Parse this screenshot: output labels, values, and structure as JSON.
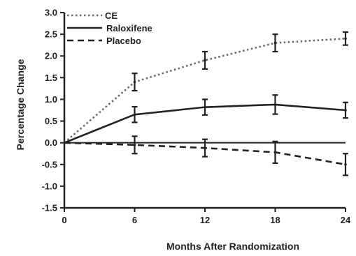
{
  "chart_data": {
    "type": "line",
    "title": "",
    "xlabel": "Months After Randomization",
    "ylabel": "Percentage Change",
    "x": [
      0,
      6,
      12,
      18,
      24
    ],
    "xlim": [
      0,
      24
    ],
    "ylim": [
      -1.5,
      3.0
    ],
    "x_ticks": [
      "0",
      "6",
      "12",
      "18",
      "24"
    ],
    "y_ticks": [
      "3.0",
      "2.5",
      "2.0",
      "1.5",
      "1.0",
      "0.5",
      "0.0",
      "-0.5",
      "-1.0",
      "-1.5"
    ],
    "grid": false,
    "legend_position": "top-left",
    "series": [
      {
        "name": "CE",
        "style": "dotted",
        "color": "#222222",
        "values": [
          0,
          1.4,
          1.9,
          2.3,
          2.4
        ],
        "errors": [
          0,
          0.2,
          0.2,
          0.2,
          0.15
        ]
      },
      {
        "name": "Raloxifene",
        "style": "solid",
        "color": "#222222",
        "values": [
          0,
          0.65,
          0.82,
          0.88,
          0.75
        ],
        "errors": [
          0,
          0.18,
          0.18,
          0.22,
          0.18
        ]
      },
      {
        "name": "Placebo",
        "style": "dashed",
        "color": "#222222",
        "values": [
          0,
          -0.05,
          -0.12,
          -0.22,
          -0.5
        ],
        "errors": [
          0,
          0.2,
          0.2,
          0.25,
          0.25
        ]
      }
    ]
  }
}
